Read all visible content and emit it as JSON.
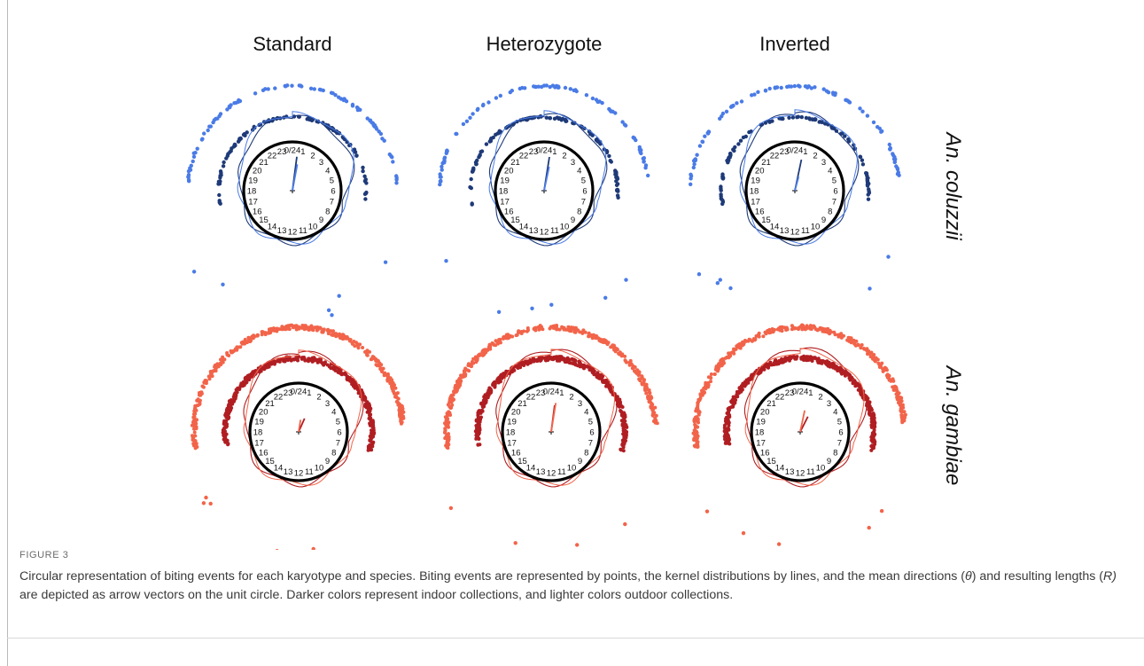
{
  "figure": {
    "column_titles": [
      "Standard",
      "Heterozygote",
      "Inverted"
    ],
    "row_labels": [
      "An. coluzzii",
      "An. gambiae"
    ],
    "hour_labels": [
      "0/24",
      "1",
      "2",
      "3",
      "4",
      "5",
      "6",
      "7",
      "8",
      "9",
      "10",
      "11",
      "12",
      "13",
      "14",
      "15",
      "16",
      "17",
      "18",
      "19",
      "20",
      "21",
      "22",
      "23"
    ],
    "colors": {
      "coluzzii_indoor": "#1e3a78",
      "coluzzii_outdoor": "#4a7be6",
      "gambiae_indoor": "#b01e22",
      "gambiae_outdoor": "#f2644a",
      "clock_ring": "#000000"
    },
    "panels": [
      {
        "row": "An. coluzzii",
        "karyotype": "Standard",
        "mean_hour_indoor": 0.5,
        "resultant_length_indoor": 0.7,
        "mean_hour_outdoor": 0.7,
        "resultant_length_outdoor": 0.55
      },
      {
        "row": "An. coluzzii",
        "karyotype": "Heterozygote",
        "mean_hour_indoor": 0.6,
        "resultant_length_indoor": 0.7,
        "mean_hour_outdoor": 0.8,
        "resultant_length_outdoor": 0.5
      },
      {
        "row": "An. coluzzii",
        "karyotype": "Inverted",
        "mean_hour_indoor": 0.8,
        "resultant_length_indoor": 0.65,
        "mean_hour_outdoor": 1.0,
        "resultant_length_outdoor": 0.3
      },
      {
        "row": "An. gambiae",
        "karyotype": "Standard",
        "mean_hour_indoor": 1.6,
        "resultant_length_indoor": 0.3,
        "mean_hour_outdoor": 0.6,
        "resultant_length_outdoor": 0.25
      },
      {
        "row": "An. gambiae",
        "karyotype": "Heterozygote",
        "mean_hour_indoor": 0.5,
        "resultant_length_indoor": 0.55,
        "mean_hour_outdoor": 0.6,
        "resultant_length_outdoor": 0.6
      },
      {
        "row": "An. gambiae",
        "karyotype": "Inverted",
        "mean_hour_indoor": 1.8,
        "resultant_length_indoor": 0.35,
        "mean_hour_outdoor": 0.8,
        "resultant_length_outdoor": 0.45
      }
    ]
  },
  "caption": {
    "label": "FIGURE 3",
    "text_1": "Circular representation of biting events for each karyotype and species. Biting events are represented by points, the kernel distributions by lines, and the mean directions (",
    "theta": "θ",
    "text_2": ") and resulting lengths (",
    "r_symbol": "R)",
    "text_3": " are depicted as arrow vectors on the unit circle. Darker colors represent indoor collections, and lighter colors outdoor collections."
  }
}
